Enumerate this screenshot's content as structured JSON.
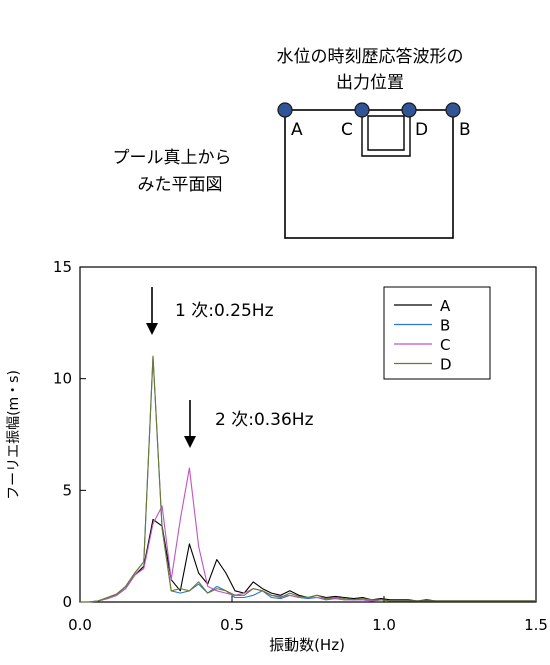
{
  "diagram": {
    "title_line1": "水位の時刻歴応答波形の",
    "title_line2": "出力位置",
    "side_label_line1": "プール真上から",
    "side_label_line2": "みた平面図",
    "points": [
      {
        "label": "A"
      },
      {
        "label": "C"
      },
      {
        "label": "D"
      },
      {
        "label": "B"
      }
    ],
    "point_color": "#2f5597"
  },
  "chart_data": {
    "type": "line",
    "xlabel": "振動数(Hz)",
    "ylabel": "フーリエ振幅(m・s)",
    "xlim": [
      0.0,
      1.5
    ],
    "ylim": [
      0,
      15
    ],
    "xticks": [
      "0.0",
      "0.5",
      "1.0",
      "1.5"
    ],
    "yticks": [
      "0",
      "5",
      "10",
      "15"
    ],
    "grid": false,
    "legend_position": "top-right",
    "annotations": [
      {
        "text": "1 次:0.25Hz",
        "x": 0.25,
        "y": 11.0
      },
      {
        "text": "2 次:0.36Hz",
        "x": 0.36,
        "y": 6.5
      }
    ],
    "x": [
      0.0,
      0.03,
      0.06,
      0.09,
      0.12,
      0.15,
      0.18,
      0.21,
      0.24,
      0.27,
      0.3,
      0.33,
      0.36,
      0.39,
      0.42,
      0.45,
      0.48,
      0.51,
      0.54,
      0.57,
      0.6,
      0.63,
      0.66,
      0.69,
      0.72,
      0.75,
      0.78,
      0.81,
      0.84,
      0.87,
      0.9,
      0.93,
      0.96,
      0.99,
      1.02,
      1.05,
      1.08,
      1.11,
      1.14,
      1.17,
      1.2,
      1.23,
      1.26,
      1.29,
      1.32,
      1.35,
      1.38,
      1.41,
      1.44,
      1.47,
      1.5
    ],
    "series": [
      {
        "name": "A",
        "color": "#000000",
        "values": [
          0.0,
          0.0,
          0.05,
          0.15,
          0.3,
          0.6,
          1.2,
          1.6,
          3.7,
          3.4,
          1.0,
          0.5,
          2.6,
          1.3,
          0.8,
          1.9,
          1.3,
          0.5,
          0.4,
          0.9,
          0.6,
          0.4,
          0.3,
          0.5,
          0.3,
          0.2,
          0.3,
          0.2,
          0.25,
          0.2,
          0.15,
          0.2,
          0.1,
          0.15,
          0.1,
          0.1,
          0.1,
          0.05,
          0.1,
          0.05,
          0.05,
          0.05,
          0.05,
          0.05,
          0.05,
          0.05,
          0.05,
          0.05,
          0.05,
          0.05,
          0.05
        ]
      },
      {
        "name": "B",
        "color": "#2e74d3",
        "values": [
          0.0,
          0.0,
          0.05,
          0.2,
          0.35,
          0.7,
          1.3,
          1.8,
          11.0,
          3.3,
          0.5,
          0.4,
          0.5,
          0.8,
          0.4,
          0.7,
          0.5,
          0.2,
          0.2,
          0.3,
          0.5,
          0.2,
          0.15,
          0.3,
          0.2,
          0.15,
          0.2,
          0.1,
          0.15,
          0.1,
          0.1,
          0.1,
          0.05,
          0.1,
          0.05,
          0.05,
          0.05,
          0.05,
          0.05,
          0.05,
          0.05,
          0.05,
          0.05,
          0.05,
          0.05,
          0.05,
          0.05,
          0.05,
          0.05,
          0.05,
          0.05
        ]
      },
      {
        "name": "C",
        "color": "#c054c4",
        "values": [
          0.0,
          0.0,
          0.05,
          0.15,
          0.3,
          0.6,
          1.2,
          1.5,
          3.5,
          4.3,
          1.0,
          3.7,
          6.0,
          2.5,
          0.7,
          0.5,
          0.4,
          0.3,
          0.4,
          0.6,
          0.5,
          0.3,
          0.25,
          0.3,
          0.2,
          0.2,
          0.2,
          0.15,
          0.15,
          0.1,
          0.1,
          0.1,
          0.05,
          0.1,
          0.05,
          0.05,
          0.05,
          0.05,
          0.05,
          0.05,
          0.05,
          0.05,
          0.05,
          0.05,
          0.05,
          0.05,
          0.05,
          0.05,
          0.05,
          0.05,
          0.05
        ]
      },
      {
        "name": "D",
        "color": "#6b7a2e",
        "values": [
          0.0,
          0.0,
          0.05,
          0.2,
          0.35,
          0.7,
          1.3,
          1.8,
          11.0,
          3.3,
          0.5,
          0.6,
          0.5,
          0.9,
          0.4,
          0.6,
          0.5,
          0.3,
          0.3,
          0.6,
          0.5,
          0.3,
          0.2,
          0.4,
          0.25,
          0.2,
          0.3,
          0.15,
          0.2,
          0.15,
          0.1,
          0.15,
          0.1,
          0.1,
          0.05,
          0.05,
          0.05,
          0.05,
          0.05,
          0.05,
          0.05,
          0.05,
          0.05,
          0.05,
          0.05,
          0.05,
          0.05,
          0.05,
          0.05,
          0.05,
          0.05
        ]
      }
    ]
  }
}
